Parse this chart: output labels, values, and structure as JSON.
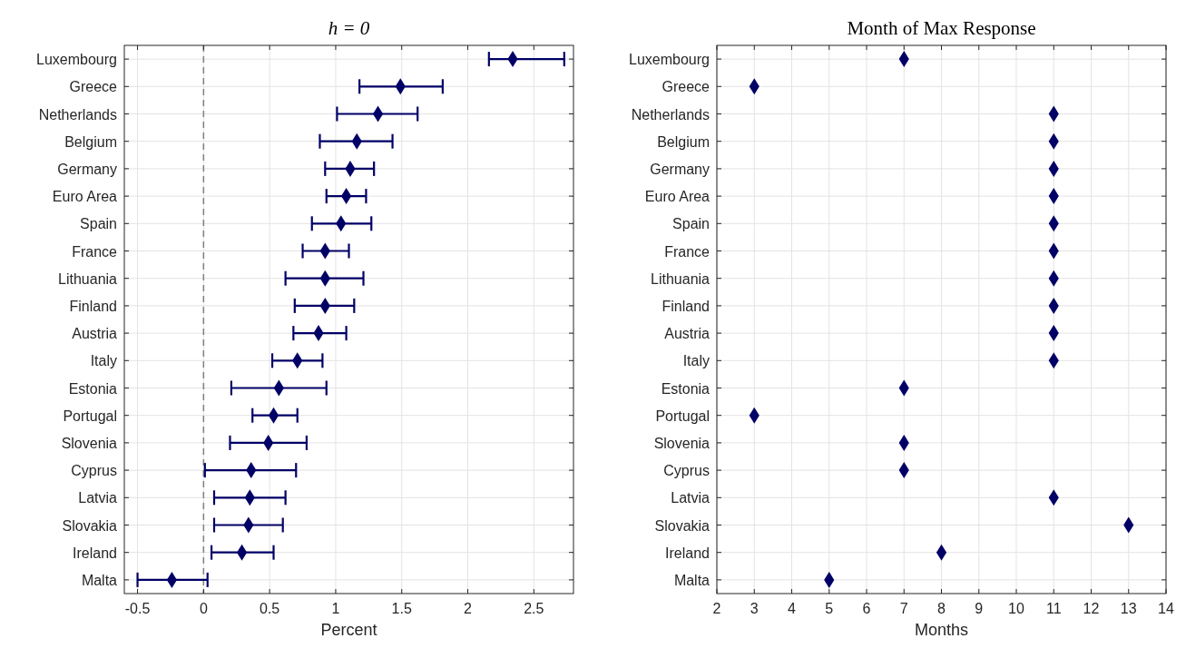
{
  "chart_data": [
    {
      "type": "scatter",
      "title": "h = 0",
      "xlabel": "Percent",
      "orientation": "horizontal",
      "marker": "diamond",
      "grid": true,
      "categories": [
        "Luxembourg",
        "Greece",
        "Netherlands",
        "Belgium",
        "Germany",
        "Euro Area",
        "Spain",
        "France",
        "Lithuania",
        "Finland",
        "Austria",
        "Italy",
        "Estonia",
        "Portugal",
        "Slovenia",
        "Cyprus",
        "Latvia",
        "Slovakia",
        "Ireland",
        "Malta"
      ],
      "series": [
        {
          "color": "#000066",
          "values": [
            2.34,
            1.49,
            1.32,
            1.16,
            1.11,
            1.08,
            1.04,
            0.92,
            0.92,
            0.92,
            0.87,
            0.71,
            0.57,
            0.53,
            0.49,
            0.36,
            0.35,
            0.34,
            0.29,
            -0.24
          ],
          "errors": [
            [
              2.16,
              2.73
            ],
            [
              1.18,
              1.81
            ],
            [
              1.01,
              1.62
            ],
            [
              0.88,
              1.43
            ],
            [
              0.92,
              1.29
            ],
            [
              0.93,
              1.23
            ],
            [
              0.82,
              1.27
            ],
            [
              0.75,
              1.1
            ],
            [
              0.62,
              1.21
            ],
            [
              0.69,
              1.14
            ],
            [
              0.68,
              1.08
            ],
            [
              0.52,
              0.9
            ],
            [
              0.21,
              0.93
            ],
            [
              0.37,
              0.71
            ],
            [
              0.2,
              0.78
            ],
            [
              0.01,
              0.7
            ],
            [
              0.08,
              0.62
            ],
            [
              0.08,
              0.6
            ],
            [
              0.06,
              0.53
            ],
            [
              -0.5,
              0.03
            ]
          ]
        }
      ],
      "xlim": [
        -0.6,
        2.8
      ],
      "xticks": [
        -0.5,
        0,
        0.5,
        1,
        1.5,
        2,
        2.5
      ],
      "ref_lines": [
        {
          "axis": "x",
          "value": 0,
          "color": "#808080",
          "line_style": "dashed"
        }
      ]
    },
    {
      "type": "scatter",
      "title": "Month of Max Response",
      "xlabel": "Months",
      "orientation": "horizontal",
      "marker": "diamond",
      "grid": true,
      "categories": [
        "Luxembourg",
        "Greece",
        "Netherlands",
        "Belgium",
        "Germany",
        "Euro Area",
        "Spain",
        "France",
        "Lithuania",
        "Finland",
        "Austria",
        "Italy",
        "Estonia",
        "Portugal",
        "Slovenia",
        "Cyprus",
        "Latvia",
        "Slovakia",
        "Ireland",
        "Malta"
      ],
      "series": [
        {
          "color": "#000066",
          "values": [
            7,
            3,
            11,
            11,
            11,
            11,
            11,
            11,
            11,
            11,
            11,
            11,
            7,
            3,
            7,
            7,
            11,
            13,
            8,
            5
          ]
        }
      ],
      "xlim": [
        2,
        14
      ],
      "xticks": [
        2,
        3,
        4,
        5,
        6,
        7,
        8,
        9,
        10,
        11,
        12,
        13,
        14
      ]
    }
  ]
}
